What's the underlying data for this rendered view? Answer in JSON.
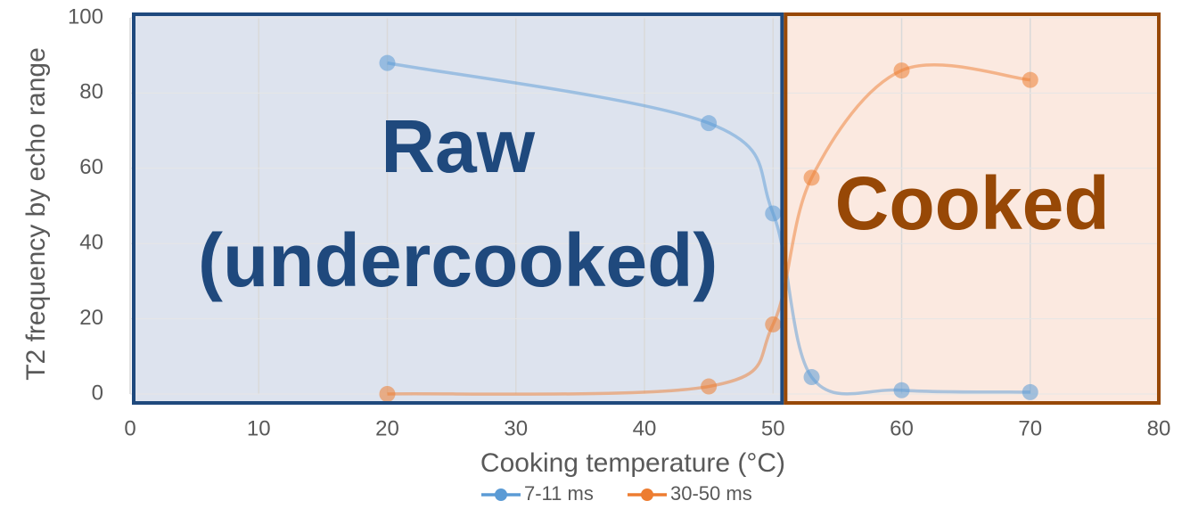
{
  "chart_data": {
    "type": "line",
    "x_label": "Cooking temperature (°C)",
    "y_label": "T2 frequency by echo range",
    "x": [
      20,
      45,
      50,
      53,
      60,
      70
    ],
    "series": [
      {
        "name": "7-11 ms",
        "color": "#5b9bd5",
        "values": [
          88,
          72,
          48,
          4.5,
          1,
          0.5
        ]
      },
      {
        "name": "30-50 ms",
        "color": "#ed7d31",
        "values": [
          0,
          2,
          18.5,
          57.5,
          86,
          83.5
        ]
      }
    ],
    "xlim": [
      0,
      80
    ],
    "xticks": [
      0,
      10,
      20,
      30,
      40,
      50,
      60,
      70,
      80
    ],
    "ylim": [
      0,
      100
    ],
    "yticks": [
      0,
      20,
      40,
      60,
      80,
      100
    ],
    "grid": true,
    "smooth": true,
    "legend": "bottom",
    "regions": [
      {
        "lines": [
          "Raw",
          "(undercooked)"
        ],
        "xlim": [
          0,
          50.7
        ],
        "color": "#1f497d",
        "fill": "#dde3ee"
      },
      {
        "lines": [
          "Cooked"
        ],
        "xlim": [
          50.7,
          80
        ],
        "color": "#974806",
        "fill": "#fbe9e0"
      }
    ]
  }
}
